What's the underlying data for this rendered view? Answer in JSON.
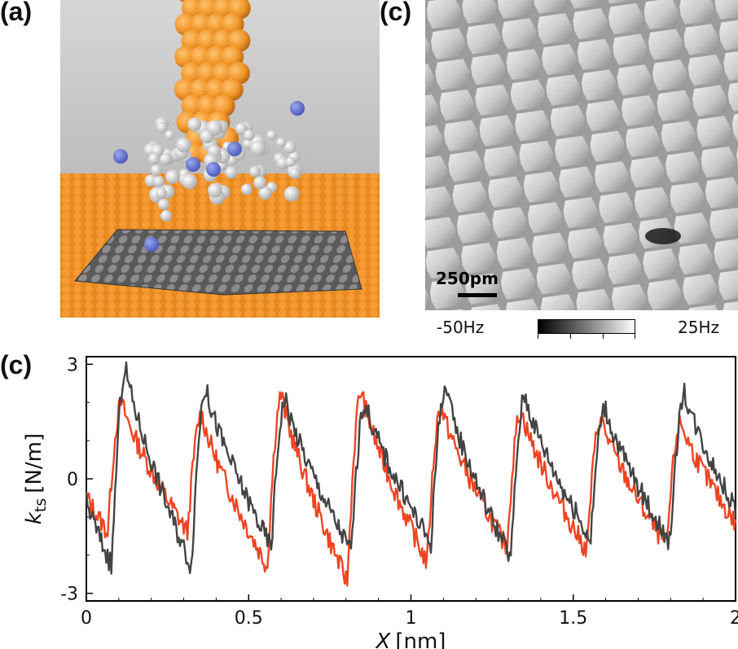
{
  "panels": {
    "a_label": "(a)",
    "b_label": "(c)",
    "c_label": "(c)"
  },
  "stm_image": {
    "scale_bar_label": "250pm",
    "colorbar_min": "-50Hz",
    "colorbar_max": "25Hz"
  },
  "chart_data": {
    "type": "line",
    "xlabel_italic": "X",
    "xlabel_unit": "[nm]",
    "ylabel_italic": "k",
    "ylabel_sub": "ts",
    "ylabel_unit": "[N/m]",
    "xlim": [
      0,
      2
    ],
    "ylim": [
      -3.2,
      3.2
    ],
    "x_ticks": [
      0,
      0.5,
      1,
      1.5,
      2
    ],
    "x_tick_labels": [
      "0",
      "0.5",
      "1",
      "1.5",
      "2"
    ],
    "y_ticks": [
      -3,
      0,
      3
    ],
    "y_tick_labels": [
      "-3",
      "0",
      "3"
    ],
    "period": 0.246,
    "series": [
      {
        "color": "#ee4422",
        "offset": 0.0,
        "peaks": [
          2.0,
          1.7,
          2.2,
          2.3,
          1.9,
          1.8,
          1.6,
          1.5,
          1.8
        ],
        "troughs": [
          -1.4,
          -2.3,
          -2.7,
          -2.2,
          -1.8,
          -1.9,
          -1.8,
          -1.6,
          -1.5
        ]
      },
      {
        "color": "#444444",
        "offset": 0.012,
        "peaks": [
          2.9,
          2.4,
          2.1,
          2.0,
          2.4,
          2.2,
          1.9,
          2.3,
          1.6
        ],
        "troughs": [
          -2.3,
          -1.8,
          -1.9,
          -1.7,
          -2.1,
          -1.6,
          -1.7,
          -1.5,
          -1.3
        ]
      }
    ]
  }
}
